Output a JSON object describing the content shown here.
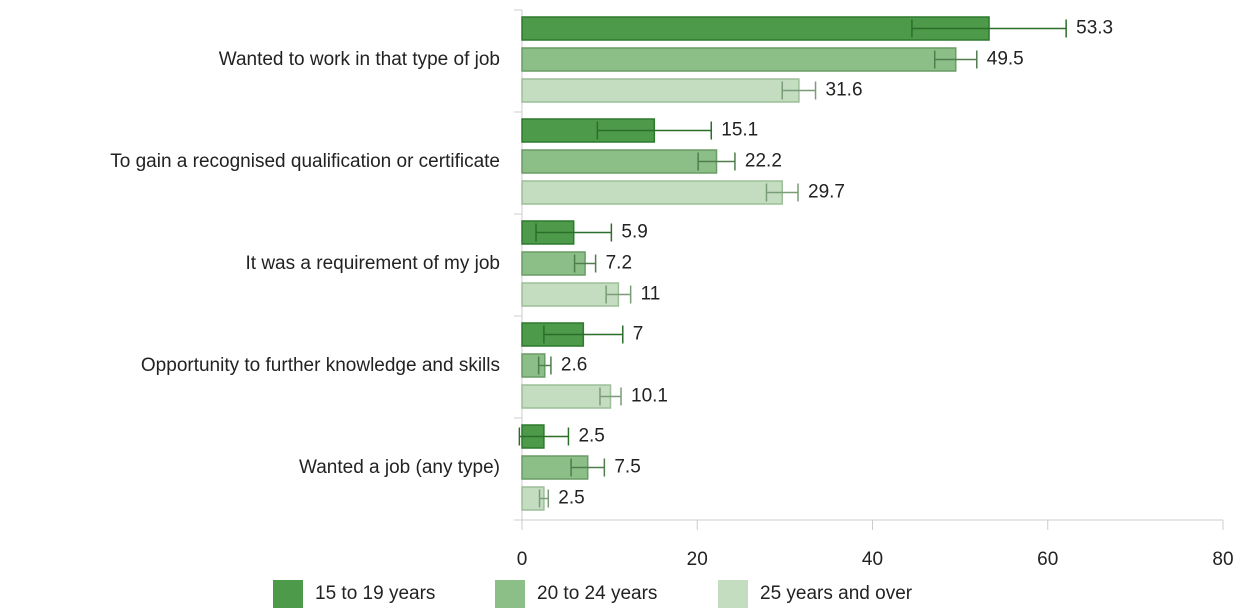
{
  "chart_data": {
    "type": "bar",
    "orientation": "horizontal",
    "categories": [
      "Wanted to work in that type of job",
      "To gain a recognised qualification or certificate",
      "It was a requirement of my job",
      "Opportunity to further knowledge and skills",
      "Wanted a job (any type)"
    ],
    "series": [
      {
        "name": "15 to 19 years",
        "color": "#4e9a4b",
        "values": [
          53.3,
          15.1,
          5.9,
          7,
          2.5
        ],
        "errors": [
          8.8,
          6.5,
          4.3,
          4.5,
          2.8
        ]
      },
      {
        "name": "20 to 24 years",
        "color": "#8cbe88",
        "values": [
          49.5,
          22.2,
          7.2,
          2.6,
          7.5
        ],
        "errors": [
          2.4,
          2.1,
          1.2,
          0.7,
          1.9
        ]
      },
      {
        "name": "25 years and over",
        "color": "#c4ddc1",
        "values": [
          31.6,
          29.7,
          11,
          10.1,
          2.5
        ],
        "errors": [
          1.9,
          1.8,
          1.4,
          1.2,
          0.5
        ]
      }
    ],
    "xlim": [
      0,
      80
    ],
    "xticks": [
      0,
      20,
      40,
      60,
      80
    ]
  }
}
